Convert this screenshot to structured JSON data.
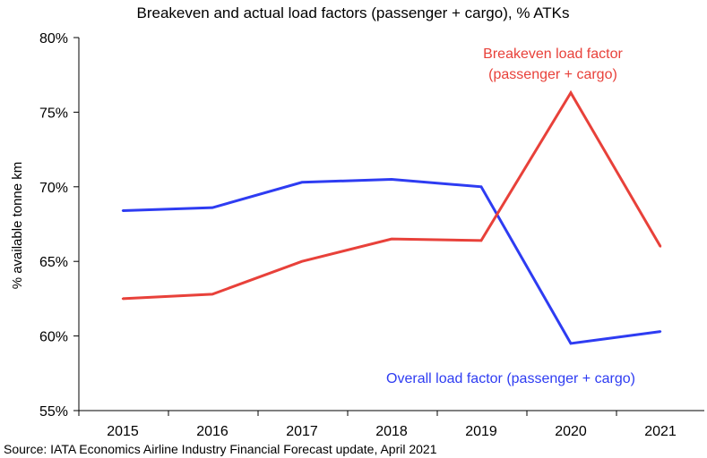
{
  "chart_data": {
    "type": "line",
    "title": "Breakeven and actual load factors (passenger + cargo), % ATKs",
    "xlabel": "",
    "ylabel": "% available tonne km",
    "x": [
      "2015",
      "2016",
      "2017",
      "2018",
      "2019",
      "2020",
      "2021"
    ],
    "ylim": [
      55,
      80
    ],
    "yticks": [
      55,
      60,
      65,
      70,
      75,
      80
    ],
    "ytick_labels": [
      "55%",
      "60%",
      "65%",
      "70%",
      "75%",
      "80%"
    ],
    "grid": false,
    "legend": "inline annotations",
    "series": [
      {
        "name": "Breakeven load factor (passenger + cargo)",
        "label_lines": [
          "Breakeven load factor",
          "(passenger + cargo)"
        ],
        "color": "#e8413a",
        "values": [
          62.5,
          62.8,
          65.0,
          66.5,
          66.4,
          76.3,
          66.0
        ]
      },
      {
        "name": "Overall load factor (passenger + cargo)",
        "label_lines": [
          "Overall load factor (passenger + cargo)"
        ],
        "color": "#2e3cf2",
        "values": [
          68.4,
          68.6,
          70.3,
          70.5,
          70.0,
          59.5,
          60.3
        ]
      }
    ],
    "source": "Source: IATA Economics Airline Industry Financial Forecast update, April 2021"
  }
}
